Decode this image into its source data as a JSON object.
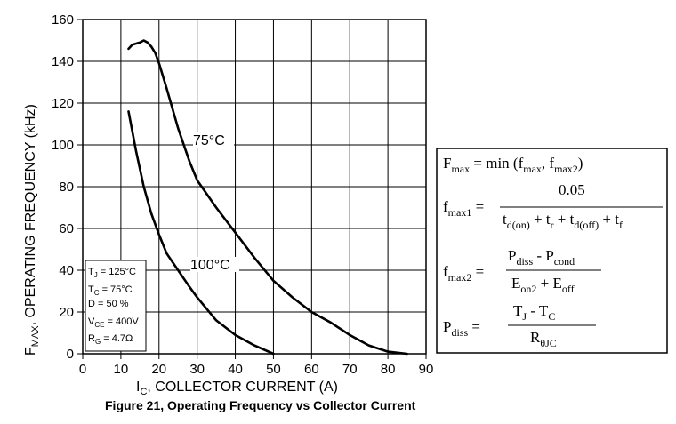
{
  "chart_data": {
    "type": "line",
    "xlabel_prefix": "I",
    "xlabel_sub": "C",
    "xlabel_rest": ", COLLECTOR CURRENT (A)",
    "ylabel_prefix": "F",
    "ylabel_sub": "MAX",
    "ylabel_rest": ", OPERATING FREQUENCY (kHz)",
    "xlim": [
      0,
      90
    ],
    "ylim": [
      0,
      160
    ],
    "xticks": [
      "0",
      "10",
      "20",
      "30",
      "40",
      "50",
      "60",
      "70",
      "80",
      "90"
    ],
    "yticks": [
      "0",
      "20",
      "40",
      "60",
      "80",
      "100",
      "120",
      "140",
      "160"
    ],
    "grid": true,
    "series": [
      {
        "name": "75°C",
        "x": [
          12,
          13,
          15,
          16,
          17,
          18,
          19,
          20,
          22,
          25,
          28,
          30,
          35,
          40,
          45,
          50,
          55,
          60,
          65,
          70,
          75,
          80,
          85
        ],
        "y": [
          146,
          148,
          149,
          150,
          149,
          147,
          144,
          139,
          127,
          108,
          92,
          83,
          70,
          58,
          46,
          35,
          27,
          20,
          15,
          9,
          4,
          1,
          0
        ]
      },
      {
        "name": "100°C",
        "x": [
          12,
          14,
          16,
          18,
          20,
          22,
          25,
          28,
          30,
          35,
          40,
          45,
          50
        ],
        "y": [
          116,
          97,
          80,
          67,
          57,
          48,
          40,
          32,
          27,
          16,
          9,
          4,
          0
        ]
      }
    ],
    "caption": "Figure 21, Operating  Frequency  vs Collector  Current"
  },
  "conditions": {
    "tj": {
      "p": "T",
      "s": "J",
      "v": " =  125°C"
    },
    "tc": {
      "p": "T",
      "s": "C",
      "v": " =  75°C"
    },
    "d": "D = 50 %",
    "vce": {
      "p": "V",
      "s": "CE",
      "v": " =  400V"
    },
    "rg": {
      "p": "R",
      "s": "G",
      "v": " = 4.7Ω"
    }
  },
  "formulas": {
    "f1": {
      "a": "F",
      "as": "max",
      "b": " = min (f",
      "bs": "max",
      "c": ", f",
      "cs": "max2",
      "d": ")"
    },
    "f2": {
      "lhs": "f",
      "lhss": "max1",
      "eq": " =",
      "num": "0.05",
      "d1": "t",
      "d1s": "d(on)",
      "d2": " + t",
      "d2s": "r",
      "d3": " + t",
      "d3s": "d(off)",
      "d4": " + t",
      "d4s": "f"
    },
    "f3": {
      "lhs": "f",
      "lhss": "max2",
      "eq": " =",
      "n1": "P",
      "n1s": "diss",
      "n2": " - P",
      "n2s": "cond",
      "d1": "E",
      "d1s": "on2",
      "d2": " + E",
      "d2s": "off"
    },
    "f4": {
      "lhs": "P",
      "lhss": "diss",
      "eq": " =",
      "n1": "T",
      "n1s": "J",
      "n2": " - T",
      "n2s": "C",
      "d1": "R",
      "d1s": "θJC"
    }
  }
}
